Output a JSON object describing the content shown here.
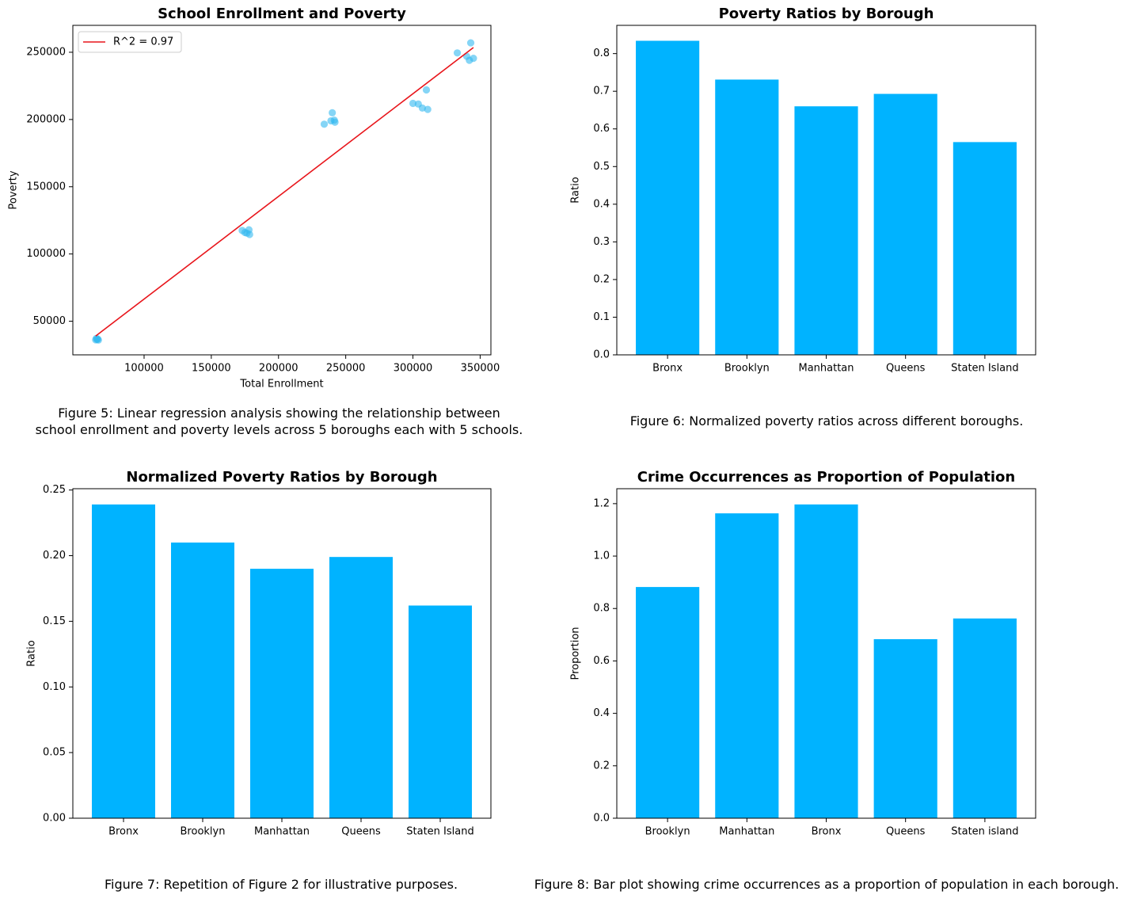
{
  "chart_data": [
    {
      "type": "scatter",
      "title": "School Enrollment and Poverty",
      "xlabel": "Total Enrollment",
      "ylabel": "Poverty",
      "xlim": [
        47000,
        358000
      ],
      "ylim": [
        25000,
        270000
      ],
      "xticks": [
        100000,
        150000,
        200000,
        250000,
        300000,
        350000
      ],
      "yticks": [
        50000,
        100000,
        150000,
        200000,
        250000
      ],
      "grid": false,
      "legend": {
        "position": "top-left",
        "entries": [
          "R^2 = 0.97"
        ]
      },
      "point_color": "#33b9f0",
      "line_color": "#e8151b",
      "points": [
        {
          "x": 64000,
          "y": 36200
        },
        {
          "x": 64500,
          "y": 37200
        },
        {
          "x": 65000,
          "y": 36500
        },
        {
          "x": 65500,
          "y": 36800
        },
        {
          "x": 66000,
          "y": 36000
        },
        {
          "x": 173000,
          "y": 117500
        },
        {
          "x": 175000,
          "y": 116000
        },
        {
          "x": 176500,
          "y": 115500
        },
        {
          "x": 178000,
          "y": 118000
        },
        {
          "x": 178500,
          "y": 114500
        },
        {
          "x": 234000,
          "y": 196500
        },
        {
          "x": 239000,
          "y": 199000
        },
        {
          "x": 240000,
          "y": 205000
        },
        {
          "x": 241500,
          "y": 199500
        },
        {
          "x": 242000,
          "y": 198000
        },
        {
          "x": 300000,
          "y": 212000
        },
        {
          "x": 304000,
          "y": 211500
        },
        {
          "x": 307000,
          "y": 208500
        },
        {
          "x": 310000,
          "y": 222000
        },
        {
          "x": 311000,
          "y": 207500
        },
        {
          "x": 333000,
          "y": 249500
        },
        {
          "x": 340000,
          "y": 247000
        },
        {
          "x": 342000,
          "y": 244000
        },
        {
          "x": 343000,
          "y": 257000
        },
        {
          "x": 345000,
          "y": 245500
        }
      ],
      "fit_line": [
        {
          "x": 64000,
          "y": 39000
        },
        {
          "x": 345000,
          "y": 253500
        }
      ]
    },
    {
      "type": "bar",
      "title": "Poverty Ratios by Borough",
      "xlabel": "",
      "ylabel": "Ratio",
      "categories": [
        "Bronx",
        "Brooklyn",
        "Manhattan",
        "Queens",
        "Staten Island"
      ],
      "values": [
        0.834,
        0.731,
        0.66,
        0.693,
        0.565
      ],
      "ylim": [
        0,
        0.875
      ],
      "yticks": [
        "0.0",
        "0.1",
        "0.2",
        "0.3",
        "0.4",
        "0.5",
        "0.6",
        "0.7",
        "0.8"
      ],
      "grid": false,
      "bar_color": "#00b3ff"
    },
    {
      "type": "bar",
      "title": "Normalized Poverty Ratios by Borough",
      "xlabel": "",
      "ylabel": "Ratio",
      "categories": [
        "Bronx",
        "Brooklyn",
        "Manhattan",
        "Queens",
        "Staten Island"
      ],
      "values": [
        0.239,
        0.21,
        0.19,
        0.199,
        0.162
      ],
      "ylim": [
        0,
        0.251
      ],
      "yticks": [
        "0.00",
        "0.05",
        "0.10",
        "0.15",
        "0.20",
        "0.25"
      ],
      "grid": false,
      "bar_color": "#00b3ff"
    },
    {
      "type": "bar",
      "title": "Crime Occurrences as Proportion of Population",
      "xlabel": "",
      "ylabel": "Proportion",
      "categories": [
        "Brooklyn",
        "Manhattan",
        "Bronx",
        "Queens",
        "Staten island"
      ],
      "values": [
        0.882,
        1.163,
        1.197,
        0.683,
        0.762
      ],
      "ylim": [
        0,
        1.257
      ],
      "yticks": [
        "0.0",
        "0.2",
        "0.4",
        "0.6",
        "0.8",
        "1.0",
        "1.2"
      ],
      "grid": false,
      "bar_color": "#00b3ff"
    }
  ],
  "captions": {
    "fig5_line1": "Figure 5: Linear regression analysis showing the relationship between",
    "fig5_line2": "school enrollment and poverty levels across 5 boroughs each with 5 schools.",
    "fig6": "Figure 6: Normalized poverty ratios across different boroughs.",
    "fig7": "Figure 7: Repetition of Figure 2 for illustrative purposes.",
    "fig8": "Figure 8: Bar plot showing crime occurrences as a proportion of population in each borough."
  }
}
